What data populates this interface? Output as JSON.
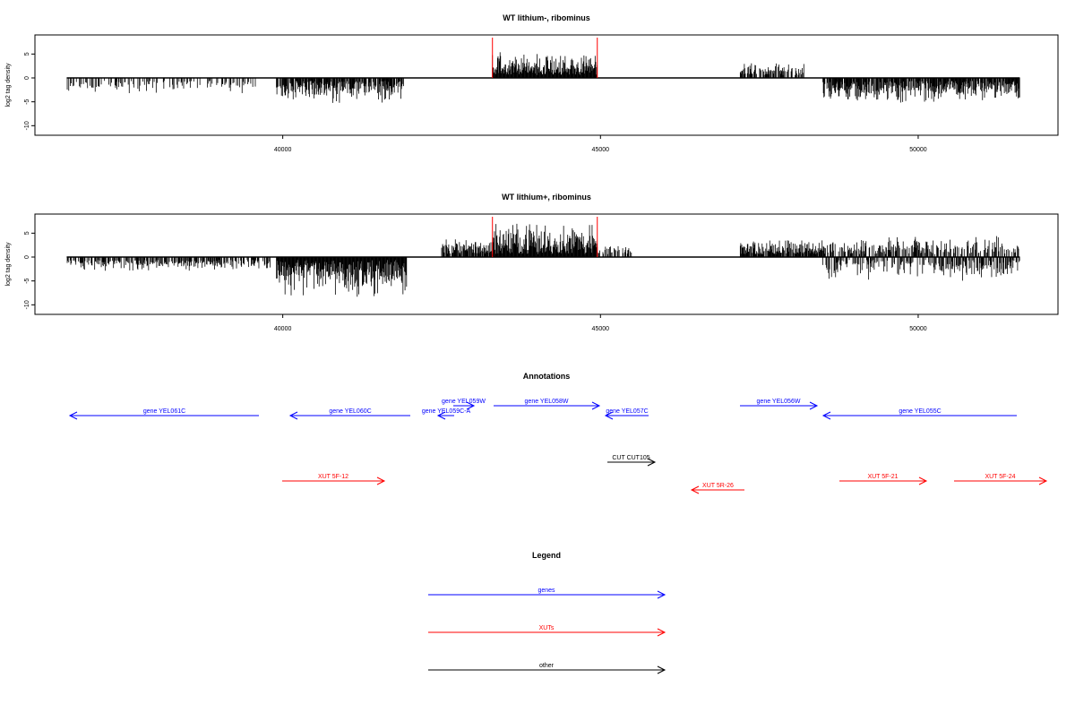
{
  "chart_data": [
    {
      "type": "bar",
      "title": "WT lithium-, ribominus",
      "ylabel": "log2 tag density",
      "xlabel": "",
      "xlim": [
        36100,
        52200
      ],
      "ylim": [
        -12,
        9
      ],
      "xticks": [
        40000,
        45000,
        50000
      ],
      "yticks": [
        5,
        0,
        -5,
        -10
      ],
      "grid": false,
      "markers": [
        43300,
        44950
      ],
      "marker_color": "#ff0000",
      "data_range": [
        36600,
        51600
      ],
      "regions": [
        {
          "from": 36600,
          "to": 39600,
          "sign": -1,
          "max": 3.5,
          "density": 0.35
        },
        {
          "from": 39900,
          "to": 41900,
          "sign": -1,
          "max": 5.5,
          "density": 0.8
        },
        {
          "from": 43300,
          "to": 44950,
          "sign": 1,
          "max": 5.5,
          "density": 1.0
        },
        {
          "from": 47200,
          "to": 48200,
          "sign": 1,
          "max": 3.5,
          "density": 0.6
        },
        {
          "from": 48500,
          "to": 51600,
          "sign": -1,
          "max": 5.5,
          "density": 0.9
        }
      ]
    },
    {
      "type": "bar",
      "title": "WT lithium+, ribominus",
      "ylabel": "log2 tag density",
      "xlabel": "",
      "xlim": [
        36100,
        52200
      ],
      "ylim": [
        -12,
        9
      ],
      "xticks": [
        40000,
        45000,
        50000
      ],
      "yticks": [
        5,
        0,
        -5,
        -10
      ],
      "grid": false,
      "markers": [
        43300,
        44950
      ],
      "marker_color": "#ff0000",
      "data_range": [
        36600,
        51600
      ],
      "regions": [
        {
          "from": 36600,
          "to": 39800,
          "sign": -1,
          "max": 3.0,
          "density": 0.6
        },
        {
          "from": 39900,
          "to": 41950,
          "sign": -1,
          "max": 9.0,
          "density": 1.0
        },
        {
          "from": 42500,
          "to": 43300,
          "sign": 1,
          "max": 4.5,
          "density": 0.8
        },
        {
          "from": 43300,
          "to": 44950,
          "sign": 1,
          "max": 8.0,
          "density": 1.0
        },
        {
          "from": 44950,
          "to": 45500,
          "sign": 1,
          "max": 3.5,
          "density": 0.6
        },
        {
          "from": 47200,
          "to": 48500,
          "sign": 1,
          "max": 4.0,
          "density": 0.9
        },
        {
          "from": 48500,
          "to": 51600,
          "sign": 0,
          "max": 5.0,
          "density": 1.0
        }
      ]
    }
  ],
  "annotations": {
    "title": "Annotations",
    "genes": [
      {
        "label": "gene YEL061C",
        "x1": 78,
        "x2": 289,
        "y": 464,
        "dir": "left"
      },
      {
        "label": "gene YEL060C",
        "x1": 324,
        "x2": 458,
        "y": 464,
        "dir": "left"
      },
      {
        "label": "gene YEL059C-A",
        "x1": 489,
        "x2": 507,
        "y": 464,
        "dir": "left"
      },
      {
        "label": "gene YEL059W",
        "x1": 506,
        "x2": 529,
        "y": 453,
        "dir": "right"
      },
      {
        "label": "gene YEL058W",
        "x1": 551,
        "x2": 669,
        "y": 453,
        "dir": "right"
      },
      {
        "label": "gene YEL057C",
        "x1": 676,
        "x2": 724,
        "y": 464,
        "dir": "left"
      },
      {
        "label": "gene YEL056W",
        "x1": 826,
        "x2": 912,
        "y": 453,
        "dir": "right"
      },
      {
        "label": "gene YEL055C",
        "x1": 919,
        "x2": 1135,
        "y": 464,
        "dir": "left"
      }
    ],
    "other": [
      {
        "label": "CUT CUT105",
        "x1": 678,
        "x2": 731,
        "y": 516,
        "dir": "right"
      }
    ],
    "xuts": [
      {
        "label": "XUT 5F-12",
        "x1": 315,
        "x2": 429,
        "y": 537,
        "dir": "right"
      },
      {
        "label": "XUT 5R-26",
        "x1": 772,
        "x2": 831,
        "y": 547,
        "dir": "left"
      },
      {
        "label": "XUT 5F-21",
        "x1": 937,
        "x2": 1034,
        "y": 537,
        "dir": "right"
      },
      {
        "label": "XUT 5F-24",
        "x1": 1065,
        "x2": 1168,
        "y": 537,
        "dir": "right"
      }
    ]
  },
  "legend": {
    "title": "Legend",
    "items": [
      {
        "label": "genes",
        "color": "#0000ff"
      },
      {
        "label": "XUTs",
        "color": "#ff0000"
      },
      {
        "label": "other",
        "color": "#000000"
      }
    ]
  },
  "colors": {
    "genes": "#0000ff",
    "xuts": "#ff0000",
    "other": "#000000"
  }
}
